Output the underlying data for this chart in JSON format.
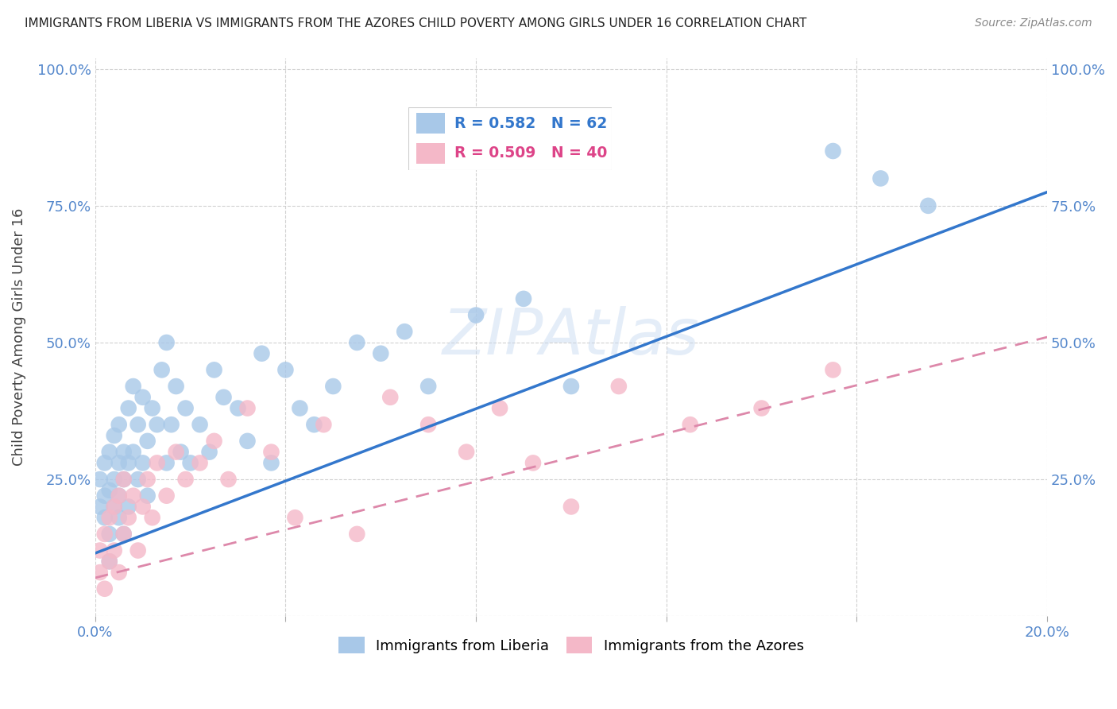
{
  "title": "IMMIGRANTS FROM LIBERIA VS IMMIGRANTS FROM THE AZORES CHILD POVERTY AMONG GIRLS UNDER 16 CORRELATION CHART",
  "source": "Source: ZipAtlas.com",
  "ylabel": "Child Poverty Among Girls Under 16",
  "blue_color": "#a8c8e8",
  "pink_color": "#f4b8c8",
  "blue_line_color": "#3377cc",
  "pink_line_color": "#dd88aa",
  "watermark": "ZIPAtlas",
  "blue_r": 0.582,
  "blue_n": 62,
  "pink_r": 0.509,
  "pink_n": 40,
  "blue_intercept": 0.115,
  "blue_slope": 3.3,
  "pink_intercept": 0.07,
  "pink_slope": 2.2,
  "blue_x": [
    0.001,
    0.001,
    0.002,
    0.002,
    0.002,
    0.003,
    0.003,
    0.003,
    0.003,
    0.004,
    0.004,
    0.004,
    0.005,
    0.005,
    0.005,
    0.005,
    0.006,
    0.006,
    0.006,
    0.007,
    0.007,
    0.007,
    0.008,
    0.008,
    0.009,
    0.009,
    0.01,
    0.01,
    0.011,
    0.011,
    0.012,
    0.013,
    0.014,
    0.015,
    0.015,
    0.016,
    0.017,
    0.018,
    0.019,
    0.02,
    0.022,
    0.024,
    0.025,
    0.027,
    0.03,
    0.032,
    0.035,
    0.037,
    0.04,
    0.043,
    0.046,
    0.05,
    0.055,
    0.06,
    0.065,
    0.07,
    0.08,
    0.09,
    0.1,
    0.155,
    0.165,
    0.175
  ],
  "blue_y": [
    0.2,
    0.25,
    0.18,
    0.22,
    0.28,
    0.15,
    0.23,
    0.3,
    0.1,
    0.25,
    0.2,
    0.33,
    0.18,
    0.28,
    0.22,
    0.35,
    0.25,
    0.3,
    0.15,
    0.28,
    0.38,
    0.2,
    0.3,
    0.42,
    0.25,
    0.35,
    0.28,
    0.4,
    0.22,
    0.32,
    0.38,
    0.35,
    0.45,
    0.28,
    0.5,
    0.35,
    0.42,
    0.3,
    0.38,
    0.28,
    0.35,
    0.3,
    0.45,
    0.4,
    0.38,
    0.32,
    0.48,
    0.28,
    0.45,
    0.38,
    0.35,
    0.42,
    0.5,
    0.48,
    0.52,
    0.42,
    0.55,
    0.58,
    0.42,
    0.85,
    0.8,
    0.75
  ],
  "pink_x": [
    0.001,
    0.001,
    0.002,
    0.002,
    0.003,
    0.003,
    0.004,
    0.004,
    0.005,
    0.005,
    0.006,
    0.006,
    0.007,
    0.008,
    0.009,
    0.01,
    0.011,
    0.012,
    0.013,
    0.015,
    0.017,
    0.019,
    0.022,
    0.025,
    0.028,
    0.032,
    0.037,
    0.042,
    0.048,
    0.055,
    0.062,
    0.07,
    0.078,
    0.085,
    0.092,
    0.1,
    0.11,
    0.125,
    0.14,
    0.155
  ],
  "pink_y": [
    0.08,
    0.12,
    0.05,
    0.15,
    0.1,
    0.18,
    0.12,
    0.2,
    0.08,
    0.22,
    0.15,
    0.25,
    0.18,
    0.22,
    0.12,
    0.2,
    0.25,
    0.18,
    0.28,
    0.22,
    0.3,
    0.25,
    0.28,
    0.32,
    0.25,
    0.38,
    0.3,
    0.18,
    0.35,
    0.15,
    0.4,
    0.35,
    0.3,
    0.38,
    0.28,
    0.2,
    0.42,
    0.35,
    0.38,
    0.45
  ]
}
